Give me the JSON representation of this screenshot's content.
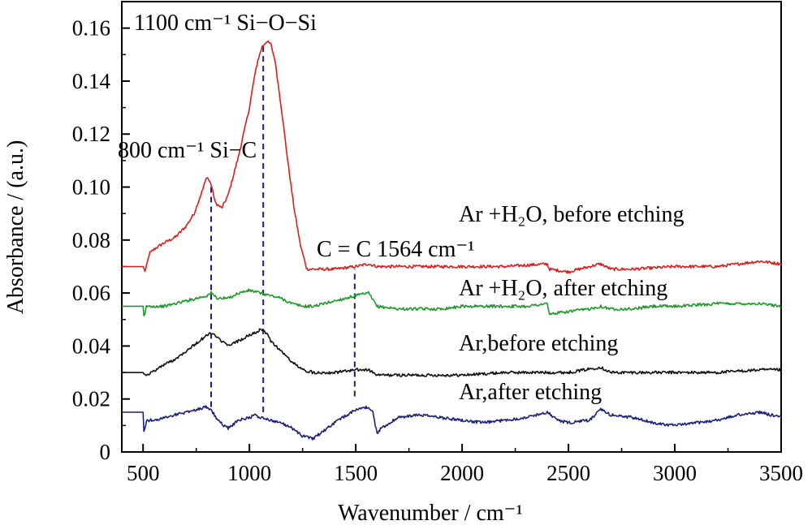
{
  "chart_data": {
    "type": "line",
    "xlabel": "Wavenumber / cm⁻¹",
    "ylabel": "Absorbance / (a.u.)",
    "xlim": [
      400,
      3500
    ],
    "ylim": [
      0,
      0.17
    ],
    "x_ticks": [
      500,
      1000,
      1500,
      2000,
      2500,
      3000,
      3500
    ],
    "y_ticks": [
      0,
      0.02,
      0.04,
      0.06,
      0.08,
      0.1,
      0.12,
      0.14,
      0.16
    ],
    "x_tick_labels": [
      "500",
      "1000",
      "1500",
      "2000",
      "2500",
      "3000",
      "3500"
    ],
    "y_tick_labels": [
      "0",
      "0.02",
      "0.04",
      "0.06",
      "0.08",
      "0.10",
      "0.12",
      "0.14",
      "0.16"
    ],
    "grid": false,
    "annotations": [
      {
        "text": "1100 cm⁻¹ Si−O−Si"
      },
      {
        "text": "800 cm⁻¹ Si−C"
      },
      {
        "text": "C = C 1564 cm⁻¹"
      }
    ],
    "series": [
      {
        "name": "Ar +H₂O, before etching",
        "color": "#d81e1e",
        "x": [
          400,
          500,
          510,
          530,
          560,
          600,
          650,
          700,
          740,
          780,
          800,
          820,
          840,
          870,
          900,
          950,
          1000,
          1020,
          1040,
          1060,
          1080,
          1100,
          1120,
          1150,
          1180,
          1210,
          1240,
          1270,
          1300,
          1400,
          1500,
          1560,
          1600,
          1800,
          2000,
          2200,
          2400,
          2410,
          2500,
          2650,
          2700,
          2800,
          3000,
          3200,
          3400,
          3500
        ],
        "y": [
          0.07,
          0.07,
          0.068,
          0.075,
          0.077,
          0.079,
          0.081,
          0.085,
          0.09,
          0.099,
          0.104,
          0.101,
          0.094,
          0.092,
          0.097,
          0.112,
          0.13,
          0.14,
          0.148,
          0.153,
          0.155,
          0.154,
          0.148,
          0.13,
          0.11,
          0.092,
          0.078,
          0.069,
          0.069,
          0.069,
          0.07,
          0.071,
          0.07,
          0.07,
          0.07,
          0.07,
          0.071,
          0.069,
          0.068,
          0.071,
          0.069,
          0.069,
          0.07,
          0.07,
          0.072,
          0.071
        ]
      },
      {
        "name": "Ar +H₂O, after etching",
        "color": "#1e9a2a",
        "x": [
          400,
          500,
          505,
          515,
          550,
          600,
          650,
          700,
          750,
          800,
          820,
          850,
          900,
          950,
          1000,
          1050,
          1100,
          1150,
          1200,
          1250,
          1300,
          1400,
          1500,
          1560,
          1600,
          1700,
          1800,
          1900,
          2000,
          2100,
          2200,
          2300,
          2400,
          2410,
          2500,
          2600,
          2650,
          2700,
          2800,
          2900,
          3000,
          3200,
          3400,
          3500
        ],
        "y": [
          0.055,
          0.055,
          0.05,
          0.055,
          0.055,
          0.055,
          0.056,
          0.057,
          0.058,
          0.059,
          0.06,
          0.058,
          0.058,
          0.06,
          0.061,
          0.06,
          0.059,
          0.058,
          0.056,
          0.055,
          0.055,
          0.057,
          0.059,
          0.06,
          0.055,
          0.054,
          0.054,
          0.054,
          0.055,
          0.055,
          0.055,
          0.055,
          0.056,
          0.052,
          0.053,
          0.054,
          0.055,
          0.054,
          0.054,
          0.055,
          0.055,
          0.056,
          0.056,
          0.055
        ]
      },
      {
        "name": "Ar,before etching",
        "color": "#111111",
        "x": [
          400,
          500,
          520,
          560,
          600,
          650,
          700,
          750,
          800,
          820,
          850,
          900,
          950,
          1000,
          1050,
          1080,
          1100,
          1150,
          1200,
          1250,
          1300,
          1400,
          1500,
          1560,
          1600,
          1700,
          1800,
          2000,
          2200,
          2400,
          2500,
          2650,
          2700,
          2800,
          3000,
          3200,
          3400,
          3500
        ],
        "y": [
          0.03,
          0.03,
          0.029,
          0.031,
          0.033,
          0.035,
          0.038,
          0.041,
          0.044,
          0.045,
          0.043,
          0.04,
          0.042,
          0.044,
          0.046,
          0.045,
          0.042,
          0.038,
          0.034,
          0.031,
          0.03,
          0.03,
          0.031,
          0.031,
          0.029,
          0.029,
          0.029,
          0.029,
          0.03,
          0.03,
          0.03,
          0.032,
          0.03,
          0.03,
          0.03,
          0.03,
          0.031,
          0.031
        ]
      },
      {
        "name": "Ar,after  etching",
        "color": "#1b1f7a",
        "x": [
          400,
          500,
          505,
          510,
          520,
          560,
          600,
          650,
          700,
          750,
          800,
          820,
          850,
          880,
          900,
          950,
          1000,
          1030,
          1050,
          1100,
          1150,
          1200,
          1250,
          1300,
          1400,
          1500,
          1550,
          1580,
          1600,
          1620,
          1700,
          1800,
          1900,
          2000,
          2100,
          2200,
          2300,
          2400,
          2450,
          2500,
          2600,
          2650,
          2700,
          2800,
          2900,
          3000,
          3100,
          3200,
          3300,
          3400,
          3500
        ],
        "y": [
          0.015,
          0.015,
          0.006,
          0.01,
          0.012,
          0.012,
          0.013,
          0.014,
          0.015,
          0.016,
          0.017,
          0.016,
          0.012,
          0.01,
          0.009,
          0.012,
          0.013,
          0.014,
          0.013,
          0.012,
          0.011,
          0.009,
          0.006,
          0.005,
          0.011,
          0.016,
          0.017,
          0.015,
          0.007,
          0.009,
          0.013,
          0.014,
          0.013,
          0.012,
          0.011,
          0.012,
          0.013,
          0.015,
          0.012,
          0.011,
          0.012,
          0.016,
          0.014,
          0.013,
          0.011,
          0.01,
          0.011,
          0.012,
          0.014,
          0.015,
          0.013
        ]
      }
    ],
    "reference_lines": [
      {
        "x": 820,
        "y_from": 0.017,
        "y_to": 0.1,
        "color": "#1b1f7a"
      },
      {
        "x": 1065,
        "y_from": 0.015,
        "y_to": 0.153,
        "color": "#1b1f7a"
      },
      {
        "x": 1495,
        "y_from": 0.021,
        "y_to": 0.069,
        "color": "#1b1f7a"
      }
    ]
  }
}
